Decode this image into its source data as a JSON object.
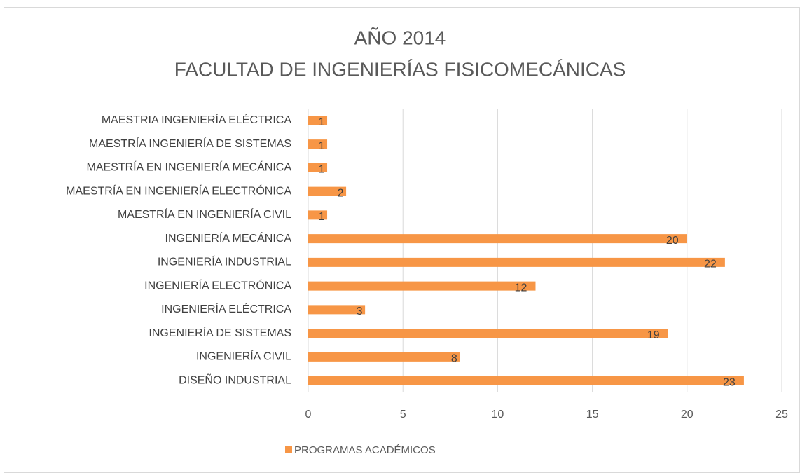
{
  "chart_data": {
    "type": "bar",
    "orientation": "horizontal",
    "title": "AÑO 2014",
    "subtitle": "FACULTAD DE INGENIERÍAS FISICOMECÁNICAS",
    "categories": [
      "DISEÑO INDUSTRIAL",
      "INGENIERÍA CIVIL",
      "INGENIERÍA DE SISTEMAS",
      "INGENIERÍA ELÉCTRICA",
      "INGENIERÍA ELECTRÓNICA",
      "INGENIERÍA INDUSTRIAL",
      "INGENIERÍA MECÁNICA",
      "MAESTRÍA EN INGENIERÍA CIVIL",
      "MAESTRÍA EN INGENIERÍA ELECTRÓNICA",
      "MAESTRÍA EN INGENIERÍA MECÁNICA",
      "MAESTRÍA INGENIERÍA DE SISTEMAS",
      "MAESTRIA INGENIERÍA ELÉCTRICA"
    ],
    "series": [
      {
        "name": "PROGRAMAS ACADÉMICOS",
        "color": "#f79646",
        "values": [
          23,
          8,
          19,
          3,
          12,
          22,
          20,
          1,
          2,
          1,
          1,
          1
        ]
      }
    ],
    "xlim": [
      0,
      25
    ],
    "xticks": [
      0,
      5,
      10,
      15,
      20,
      25
    ],
    "grid": true,
    "legend": "bottom"
  }
}
